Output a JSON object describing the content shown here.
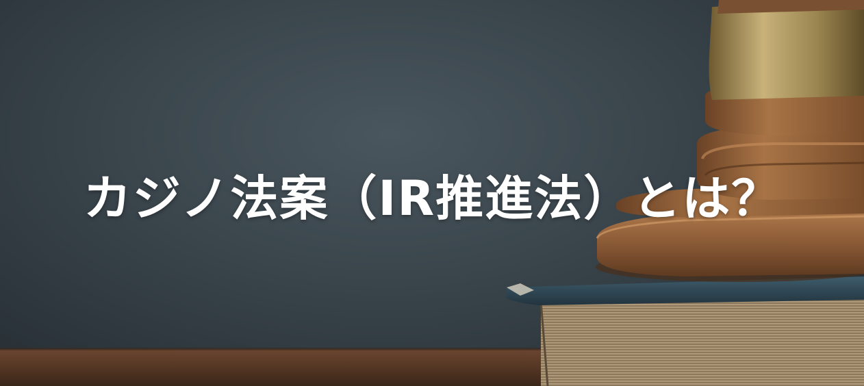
{
  "hero": {
    "headline": "カジノ法案（IR推進法）とは？"
  },
  "colors": {
    "background": "#3a454c",
    "headline": "#ffffff",
    "wood": "#8a5a36",
    "brass": "#a8925a",
    "book_cover": "#2f4a5a",
    "table": "#5a3a26"
  },
  "image": {
    "subject": "gavel-on-book-icon"
  }
}
